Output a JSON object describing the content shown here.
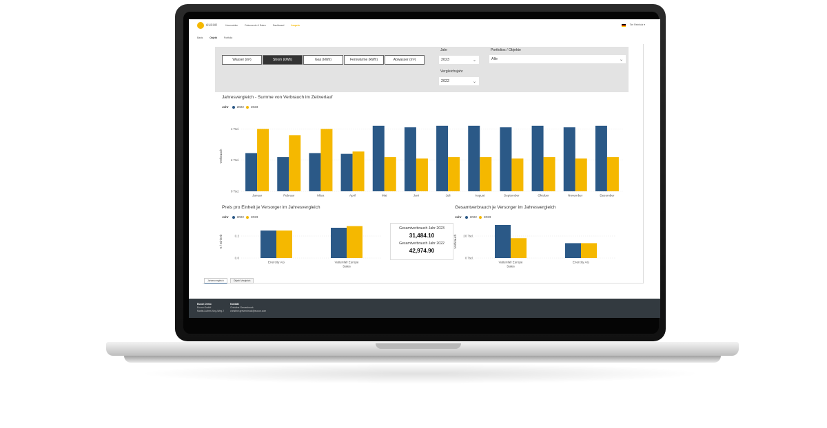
{
  "app": {
    "brand": "eucon",
    "nav": [
      "Kennzahlen",
      "Dokumente & Daten",
      "Dashboard",
      "Ampeln"
    ],
    "active_nav": "Ampeln",
    "user": "Tim Reinholz ▾",
    "subnav": [
      "Basis",
      "Objekt",
      "Portfolio"
    ],
    "active_subnav": "Objekt"
  },
  "filters": {
    "media_buttons": [
      "Wasser (m³)",
      "Strom (kWh)",
      "Gas (kWh)",
      "Fernwärme (kWh)",
      "Abwasser (m³)"
    ],
    "active_media": "Strom (kWh)",
    "jahr_label": "Jahr",
    "jahr_value": "2023",
    "vergleich_label": "Vergleichsjahr",
    "vergleich_value": "2022",
    "portfolio_label": "Portfolios / Objekte",
    "portfolio_value": "Alle"
  },
  "colors": {
    "y2022": "#2b5987",
    "y2023": "#f5b800"
  },
  "legend": {
    "title": "Jahr",
    "s2022": "2022",
    "s2023": "2023"
  },
  "chart_data": [
    {
      "type": "bar",
      "title": "Jahresvergleich - Summe von Verbrauch im Zeitverlauf",
      "ylabel": "Verbrauch",
      "yticks": [
        "0 Tsd.",
        "2 Tsd.",
        "4 Tsd."
      ],
      "ylim": [
        0,
        4500
      ],
      "categories": [
        "Januar",
        "Februar",
        "März",
        "April",
        "Mai",
        "Juni",
        "Juli",
        "August",
        "September",
        "Oktober",
        "November",
        "Dezember"
      ],
      "series": [
        {
          "name": "2022",
          "values": [
            2450,
            2200,
            2450,
            2400,
            4200,
            4100,
            4200,
            4200,
            4100,
            4200,
            4100,
            4200
          ]
        },
        {
          "name": "2023",
          "values": [
            4000,
            3600,
            4000,
            2550,
            2200,
            2100,
            2200,
            2200,
            2100,
            2200,
            2100,
            2200
          ]
        }
      ],
      "legend": "top-left",
      "grid": true
    },
    {
      "type": "bar",
      "title": "Preis pro Einheit je Versorger im Jahresvergleich",
      "ylabel": "€ / Einheit",
      "yticks": [
        "0.0",
        "0.2"
      ],
      "ylim": [
        0,
        0.3
      ],
      "categories": [
        "Enercity AG",
        "Vattenfall Europe Sales"
      ],
      "series": [
        {
          "name": "2022",
          "values": [
            0.25,
            0.275
          ]
        },
        {
          "name": "2023",
          "values": [
            0.25,
            0.29
          ]
        }
      ],
      "legend": "top-left",
      "grid": true
    },
    {
      "type": "bar",
      "title": "Gesamtverbrauch je Versorger im Jahresvergleich",
      "ylabel": "Verbrauch",
      "yticks": [
        "0 Tsd.",
        "20 Tsd."
      ],
      "ylim": [
        0,
        30000
      ],
      "categories": [
        "Vattenfall Europe Sales",
        "Enercity AG"
      ],
      "series": [
        {
          "name": "2022",
          "values": [
            30000,
            13500
          ]
        },
        {
          "name": "2023",
          "values": [
            18000,
            13500
          ]
        }
      ],
      "legend": "top-left",
      "grid": true
    }
  ],
  "kpi": {
    "label_2023": "Gesamtverbrauch Jahr 2023",
    "value_2023": "31,484.10",
    "label_2022": "Gesamtverbrauch Jahr 2022",
    "value_2022": "42,974.90"
  },
  "report_tabs": [
    "Jahresvergleich",
    "Objekt Vergleich"
  ],
  "footer": {
    "col1_title": "Eucon Demo",
    "col1_line1": "Eucon GmbH",
    "col1_line2": "Martin-Luther-King-Weg 2",
    "col2_title": "Kontakt",
    "col2_line1": "Christine Grevenbrock",
    "col2_line2": "christine.grevenbrock@eucon.com"
  }
}
